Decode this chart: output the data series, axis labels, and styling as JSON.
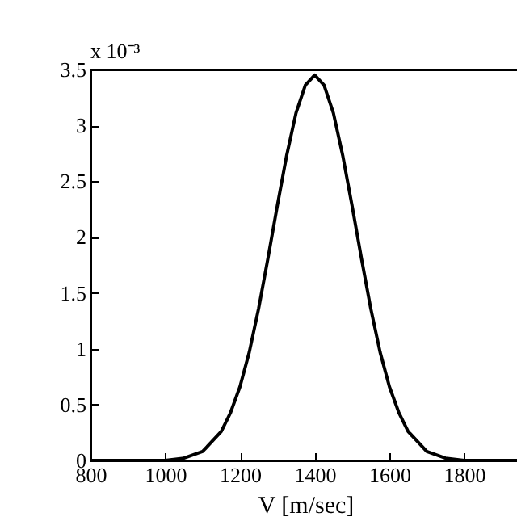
{
  "chart_data": {
    "type": "line",
    "xlabel": "V [m/sec]",
    "annotations": [
      "x 10⁻³"
    ],
    "x": [
      800,
      900,
      1000,
      1050,
      1100,
      1150,
      1175,
      1200,
      1225,
      1250,
      1275,
      1300,
      1325,
      1350,
      1375,
      1400,
      1425,
      1450,
      1475,
      1500,
      1525,
      1550,
      1575,
      1600,
      1625,
      1650,
      1700,
      1750,
      1800,
      1900,
      1950
    ],
    "series": [
      {
        "color": "#000000",
        "values": [
          0,
          0,
          0,
          0.02,
          0.08,
          0.26,
          0.43,
          0.66,
          0.97,
          1.36,
          1.81,
          2.28,
          2.73,
          3.11,
          3.36,
          3.45,
          3.36,
          3.11,
          2.73,
          2.28,
          1.81,
          1.36,
          0.97,
          0.66,
          0.43,
          0.26,
          0.08,
          0.02,
          0,
          0,
          0
        ]
      }
    ],
    "xlim": [
      800,
      1950
    ],
    "xticks": [
      800,
      1000,
      1200,
      1400,
      1600,
      1800
    ],
    "ylim": [
      0,
      3.5
    ],
    "yticks": [
      0,
      0.5,
      1,
      1.5,
      2,
      2.5,
      3,
      3.5
    ],
    "grid": false,
    "legend": false,
    "marker": "none",
    "line_style": "solid"
  }
}
